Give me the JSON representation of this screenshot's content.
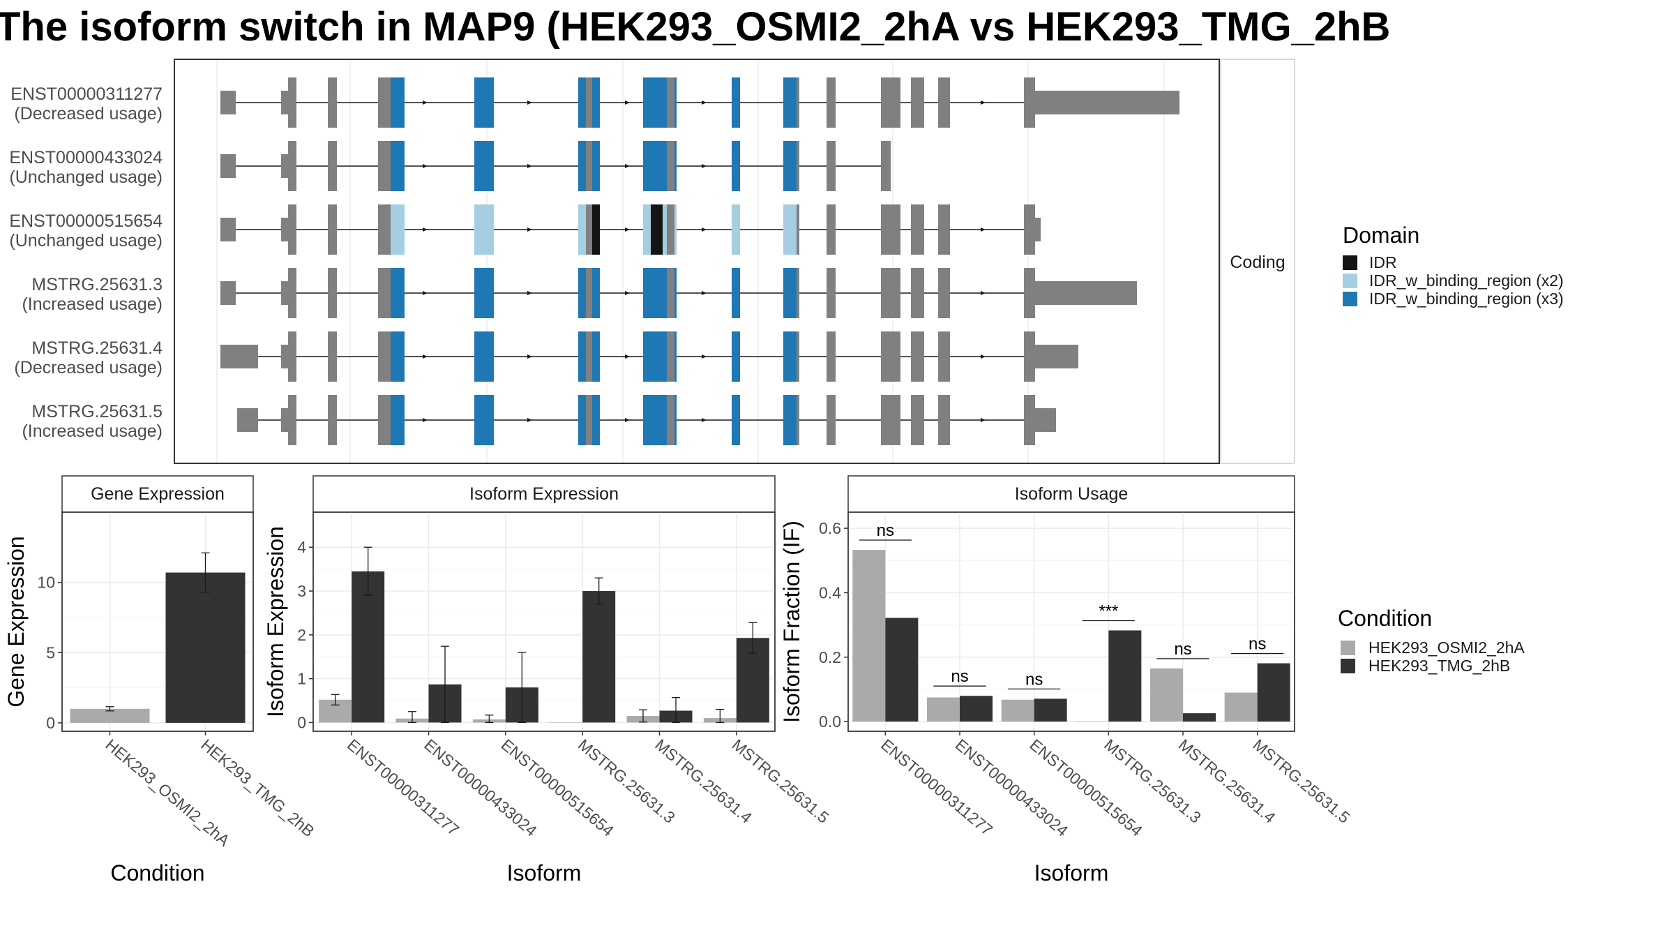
{
  "title": "The isoform switch in MAP9 (HEK293_OSMI2_2hA vs HEK293_TMG_2hB",
  "colors": {
    "exon": "#808080",
    "IDR": "#141414",
    "IDR_w_binding_region_x2": "#a6cee3",
    "IDR_w_binding_region_x3": "#1f78b4",
    "cond_A": "#aaaaaa",
    "cond_B": "#333333"
  },
  "structure_panel": {
    "strip_label": "Coding",
    "transcripts": [
      {
        "id": "ENST00000311277",
        "usage": "(Decreased usage)"
      },
      {
        "id": "ENST00000433024",
        "usage": "(Unchanged usage)"
      },
      {
        "id": "ENST00000515654",
        "usage": "(Unchanged usage)"
      },
      {
        "id": "MSTRG.25631.3",
        "usage": "(Increased usage)"
      },
      {
        "id": "MSTRG.25631.4",
        "usage": "(Decreased usage)"
      },
      {
        "id": "MSTRG.25631.5",
        "usage": "(Increased usage)"
      }
    ]
  },
  "domain_legend": {
    "title": "Domain",
    "items": [
      {
        "label": "IDR",
        "color": "#141414"
      },
      {
        "label": "IDR_w_binding_region (x2)",
        "color": "#a6cee3"
      },
      {
        "label": "IDR_w_binding_region (x3)",
        "color": "#1f78b4"
      }
    ]
  },
  "condition_legend": {
    "title": "Condition",
    "items": [
      {
        "label": "HEK293_OSMI2_2hA",
        "color": "#aaaaaa"
      },
      {
        "label": "HEK293_TMG_2hB",
        "color": "#333333"
      }
    ]
  },
  "chart_data": [
    {
      "type": "bar",
      "title": "Gene Expression",
      "xlabel": "Condition",
      "ylabel": "Gene Expression",
      "categories": [
        "HEK293_OSMI2_2hA",
        "HEK293_TMG_2hB"
      ],
      "values": [
        1.0,
        10.7
      ],
      "errors": [
        0.15,
        1.4
      ],
      "ylim": [
        -0.6,
        15.0
      ],
      "yticks": [
        0,
        5,
        10
      ]
    },
    {
      "type": "bar",
      "title": "Isoform Expression",
      "xlabel": "Isoform",
      "ylabel": "Isoform Expression",
      "categories": [
        "ENST00000311277",
        "ENST00000433024",
        "ENST00000515654",
        "MSTRG.25631.3",
        "MSTRG.25631.4",
        "MSTRG.25631.5"
      ],
      "series": [
        {
          "name": "HEK293_OSMI2_2hA",
          "values": [
            0.52,
            0.09,
            0.07,
            0.0,
            0.15,
            0.1
          ],
          "errors": [
            0.12,
            0.16,
            0.1,
            0.0,
            0.14,
            0.2
          ]
        },
        {
          "name": "HEK293_TMG_2hB",
          "values": [
            3.45,
            0.87,
            0.8,
            3.0,
            0.27,
            1.93
          ],
          "errors": [
            0.55,
            0.87,
            0.8,
            0.3,
            0.3,
            0.35
          ]
        }
      ],
      "ylim": [
        -0.2,
        4.8
      ],
      "yticks": [
        0,
        1,
        2,
        3,
        4
      ]
    },
    {
      "type": "bar",
      "title": "Isoform Usage",
      "xlabel": "Isoform",
      "ylabel": "Isoform Fraction (IF)",
      "categories": [
        "ENST00000311277",
        "ENST00000433024",
        "ENST00000515654",
        "MSTRG.25631.3",
        "MSTRG.25631.4",
        "MSTRG.25631.5"
      ],
      "series": [
        {
          "name": "HEK293_OSMI2_2hA",
          "values": [
            0.533,
            0.075,
            0.068,
            0.0,
            0.165,
            0.09
          ]
        },
        {
          "name": "HEK293_TMG_2hB",
          "values": [
            0.322,
            0.08,
            0.071,
            0.283,
            0.026,
            0.181
          ]
        }
      ],
      "significance": [
        "ns",
        "ns",
        "ns",
        "***",
        "ns",
        "ns"
      ],
      "ylim": [
        -0.03,
        0.65
      ],
      "yticks": [
        0.0,
        0.2,
        0.4,
        0.6
      ],
      "ytick_labels": [
        "0.0",
        "0.2",
        "0.4",
        "0.6"
      ]
    }
  ]
}
